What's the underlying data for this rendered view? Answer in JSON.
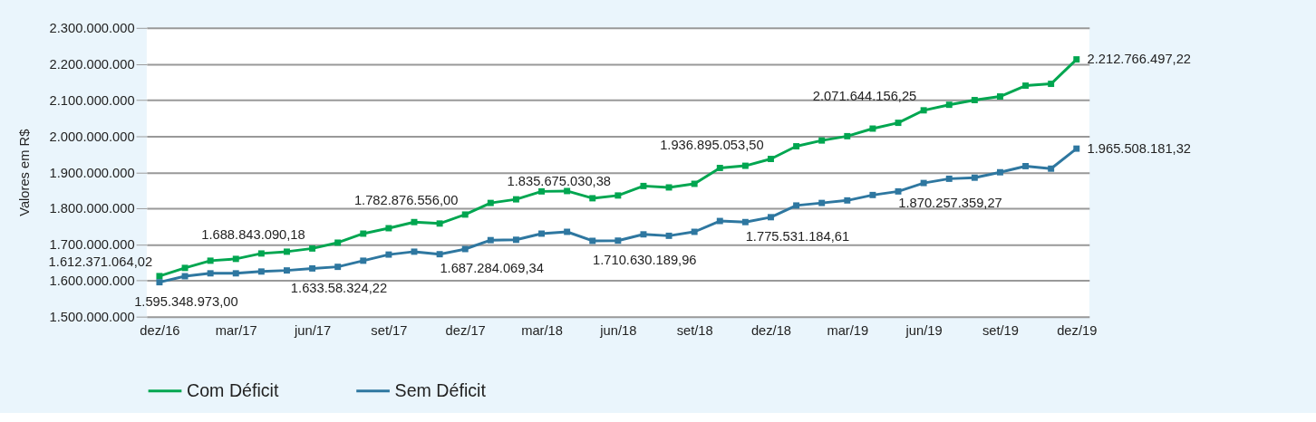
{
  "chart_data": {
    "type": "line",
    "ylabel": "Valores em R$",
    "categories": [
      "dez/16",
      null,
      null,
      "mar/17",
      null,
      null,
      "jun/17",
      null,
      null,
      "set/17",
      null,
      null,
      "dez/17",
      null,
      null,
      "mar/18",
      null,
      null,
      "jun/18",
      null,
      null,
      "set/18",
      null,
      null,
      "dez/18",
      null,
      null,
      "mar/19",
      null,
      null,
      "jun/19",
      null,
      null,
      "set/19",
      null,
      null,
      "dez/19"
    ],
    "series": [
      {
        "name": "Com Déficit",
        "color": "#00a650",
        "values": [
          1612371064.02,
          1635000000,
          1655000000,
          1660000000,
          1675000000,
          1680000000,
          1688843090.18,
          1705000000,
          1730000000,
          1745000000,
          1762000000,
          1758000000,
          1782876556.0,
          1815000000,
          1825000000,
          1847000000,
          1848000000,
          1828000000,
          1835675030.38,
          1862000000,
          1858000000,
          1868000000,
          1912000000,
          1918000000,
          1936895053.5,
          1972000000,
          1988000000,
          2000000000,
          2021000000,
          2037000000,
          2071644156.25,
          2087000000,
          2100000000,
          2110000000,
          2140000000,
          2145000000,
          2212766497.22
        ],
        "value_labels": [
          "1.612.371.064,02",
          null,
          null,
          null,
          null,
          null,
          "1.688.843.090,18",
          null,
          null,
          null,
          null,
          null,
          "1.782.876.556,00",
          null,
          null,
          null,
          null,
          null,
          "1.835.675.030,38",
          null,
          null,
          null,
          null,
          null,
          "1.936.895.053,50",
          null,
          null,
          null,
          null,
          null,
          "2.071.644.156,25",
          null,
          null,
          null,
          null,
          null,
          "2.212.766.497,22"
        ]
      },
      {
        "name": "Sem Déficit",
        "color": "#2e77a0",
        "values": [
          1595348973.0,
          1612000000,
          1620000000,
          1620000000,
          1625000000,
          1628000000,
          1633580000,
          1638000000,
          1655000000,
          1672000000,
          1680000000,
          1673000000,
          1687284069.34,
          1712000000,
          1713000000,
          1730000000,
          1735000000,
          1710000000,
          1710630189.96,
          1728000000,
          1724000000,
          1735000000,
          1765000000,
          1762000000,
          1775531184.61,
          1808000000,
          1815000000,
          1822000000,
          1837000000,
          1847000000,
          1870257359.27,
          1882000000,
          1885000000,
          1900000000,
          1917000000,
          1910000000,
          1965508181.32
        ],
        "value_labels": [
          "1.595.348.973,00",
          null,
          null,
          null,
          null,
          null,
          "1.633.58.324,22",
          null,
          null,
          null,
          null,
          null,
          "1.687.284.069,34",
          null,
          null,
          null,
          null,
          null,
          "1.710.630.189,96",
          null,
          null,
          null,
          null,
          null,
          "1.775.531.184,61",
          null,
          null,
          null,
          null,
          null,
          "1.870.257.359,27",
          null,
          null,
          null,
          null,
          null,
          "1.965.508.181,32"
        ]
      }
    ],
    "ylim": [
      1500000000,
      2300000000
    ],
    "yticks": [
      {
        "value": 1500000000,
        "label": "1.500.000.000"
      },
      {
        "value": 1600000000,
        "label": "1.600.000.000"
      },
      {
        "value": 1700000000,
        "label": "1.700.000.000"
      },
      {
        "value": 1800000000,
        "label": "1.800.000.000"
      },
      {
        "value": 1900000000,
        "label": "1.900.000.000"
      },
      {
        "value": 2000000000,
        "label": "2.000.000.000"
      },
      {
        "value": 2100000000,
        "label": "2.100.000.000"
      },
      {
        "value": 2200000000,
        "label": "2.200.000.000"
      },
      {
        "value": 2300000000,
        "label": "2.300.000.000"
      }
    ],
    "grid": "y",
    "legend": "bottom",
    "marker": "square",
    "line_style": "solid"
  }
}
